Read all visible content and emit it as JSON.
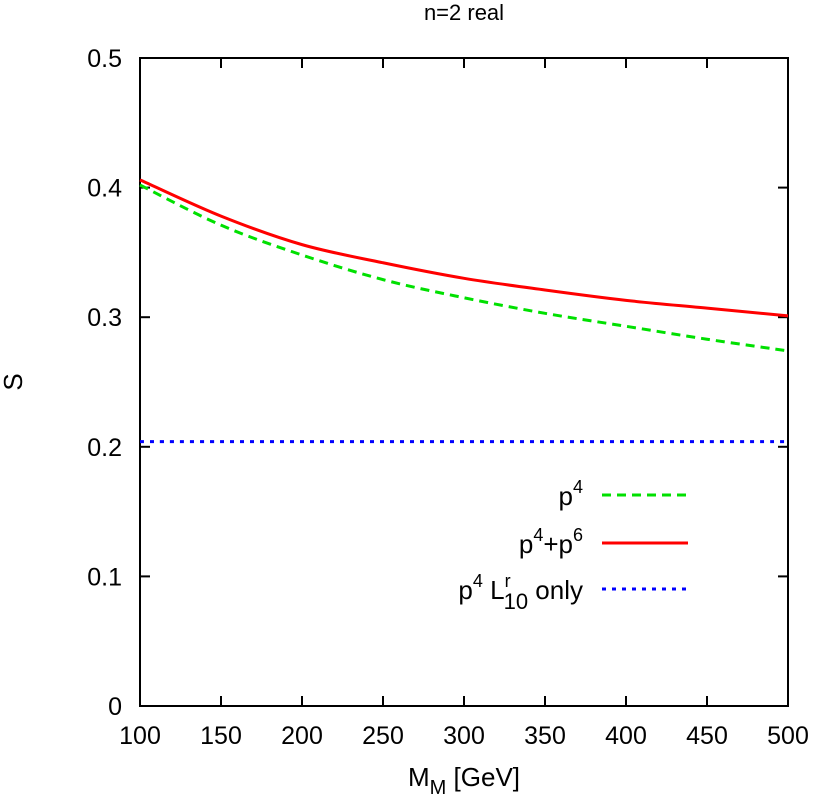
{
  "chart_data": {
    "type": "line",
    "title": "n=2 real",
    "xlabel": "M_M [GeV]",
    "xlabel_main": "M",
    "xlabel_sub": "M",
    "xlabel_rest": " [GeV]",
    "ylabel": "S",
    "xlim": [
      100,
      500
    ],
    "ylim": [
      0,
      0.5
    ],
    "grid": false,
    "legend_position": "inside lower right",
    "x_ticks": [
      100,
      150,
      200,
      250,
      300,
      350,
      400,
      450,
      500
    ],
    "y_ticks": [
      0,
      0.1,
      0.2,
      0.3,
      0.4,
      0.5
    ],
    "x_tick_labels": [
      "100",
      "150",
      "200",
      "250",
      "300",
      "350",
      "400",
      "450",
      "500"
    ],
    "y_tick_labels": [
      "0",
      "0.1",
      "0.2",
      "0.3",
      "0.4",
      "0.5"
    ],
    "x": [
      100,
      150,
      200,
      250,
      300,
      350,
      400,
      450,
      500
    ],
    "series": [
      {
        "name": "p^4",
        "legend_parts": [
          {
            "t": "p"
          },
          {
            "sup": "4"
          }
        ],
        "color": "#00e000",
        "style": "dashed",
        "values": [
          0.402,
          0.371,
          0.348,
          0.329,
          0.315,
          0.303,
          0.293,
          0.283,
          0.274
        ]
      },
      {
        "name": "p^4+p^6",
        "legend_parts": [
          {
            "t": "p"
          },
          {
            "sup": "4"
          },
          {
            "t": "+p"
          },
          {
            "sup": "6"
          }
        ],
        "color": "#ff0000",
        "style": "solid",
        "values": [
          0.406,
          0.378,
          0.356,
          0.342,
          0.33,
          0.321,
          0.313,
          0.307,
          0.301
        ]
      },
      {
        "name": "p^4 L^r_10 only",
        "legend_parts": [
          {
            "t": "p"
          },
          {
            "sup": "4"
          },
          {
            "t": " L"
          },
          {
            "supsub": [
              "r",
              "10"
            ]
          },
          {
            "t": " only"
          }
        ],
        "color": "#0000ff",
        "style": "dotted",
        "values": [
          0.204,
          0.204,
          0.204,
          0.204,
          0.204,
          0.204,
          0.204,
          0.204,
          0.204
        ]
      }
    ]
  }
}
